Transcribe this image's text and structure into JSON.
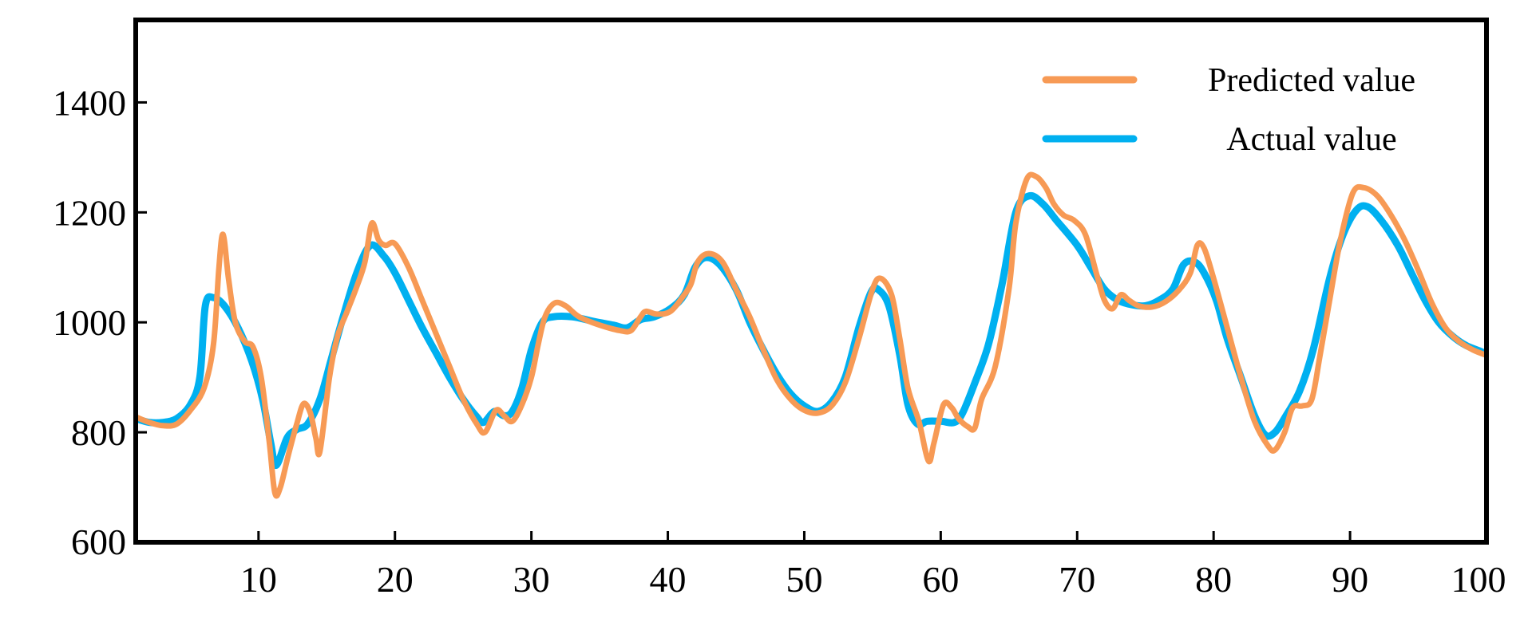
{
  "chart_data": {
    "type": "line",
    "title": "",
    "xlabel": "",
    "ylabel": "",
    "xlim": [
      1,
      100
    ],
    "ylim": [
      600,
      1550
    ],
    "x_ticks": [
      10,
      20,
      30,
      40,
      50,
      60,
      70,
      80,
      90,
      100
    ],
    "y_ticks": [
      600,
      800,
      1000,
      1200,
      1400
    ],
    "grid": false,
    "legend_position": "top-right",
    "series": [
      {
        "name": "Predicted value",
        "color": "#f79a55",
        "points": [
          [
            1,
            828
          ],
          [
            2,
            818
          ],
          [
            3,
            812
          ],
          [
            4,
            815
          ],
          [
            5,
            840
          ],
          [
            6,
            880
          ],
          [
            6.7,
            960
          ],
          [
            7.1,
            1100
          ],
          [
            7.4,
            1160
          ],
          [
            7.8,
            1080
          ],
          [
            8.3,
            1000
          ],
          [
            9,
            965
          ],
          [
            9.6,
            955
          ],
          [
            10.2,
            900
          ],
          [
            10.8,
            780
          ],
          [
            11.2,
            690
          ],
          [
            11.6,
            700
          ],
          [
            12.2,
            760
          ],
          [
            12.8,
            815
          ],
          [
            13.3,
            852
          ],
          [
            13.8,
            835
          ],
          [
            14.2,
            790
          ],
          [
            14.5,
            765
          ],
          [
            15.2,
            900
          ],
          [
            15.8,
            975
          ],
          [
            16.5,
            1020
          ],
          [
            17.2,
            1065
          ],
          [
            17.8,
            1110
          ],
          [
            18.3,
            1180
          ],
          [
            18.8,
            1150
          ],
          [
            19.3,
            1140
          ],
          [
            20,
            1143
          ],
          [
            21,
            1100
          ],
          [
            22,
            1040
          ],
          [
            23,
            980
          ],
          [
            24,
            920
          ],
          [
            25,
            860
          ],
          [
            26,
            815
          ],
          [
            26.6,
            800
          ],
          [
            27.4,
            840
          ],
          [
            28,
            830
          ],
          [
            28.6,
            820
          ],
          [
            29.3,
            850
          ],
          [
            30,
            900
          ],
          [
            30.5,
            960
          ],
          [
            31,
            1010
          ],
          [
            31.7,
            1035
          ],
          [
            32.5,
            1030
          ],
          [
            33.5,
            1010
          ],
          [
            35,
            995
          ],
          [
            36.5,
            985
          ],
          [
            37.3,
            985
          ],
          [
            38,
            1010
          ],
          [
            38.4,
            1020
          ],
          [
            39.2,
            1015
          ],
          [
            40.2,
            1020
          ],
          [
            41.2,
            1050
          ],
          [
            41.7,
            1070
          ],
          [
            42.2,
            1110
          ],
          [
            43,
            1125
          ],
          [
            44,
            1110
          ],
          [
            45,
            1060
          ],
          [
            46,
            1010
          ],
          [
            47,
            950
          ],
          [
            48,
            895
          ],
          [
            49,
            860
          ],
          [
            50,
            840
          ],
          [
            51,
            835
          ],
          [
            52,
            848
          ],
          [
            53,
            890
          ],
          [
            54,
            970
          ],
          [
            55,
            1060
          ],
          [
            55.6,
            1080
          ],
          [
            56.4,
            1050
          ],
          [
            57,
            970
          ],
          [
            57.6,
            880
          ],
          [
            58.4,
            820
          ],
          [
            59.1,
            748
          ],
          [
            59.5,
            780
          ],
          [
            60.2,
            850
          ],
          [
            60.8,
            845
          ],
          [
            61.3,
            825
          ],
          [
            62,
            810
          ],
          [
            62.5,
            808
          ],
          [
            63,
            860
          ],
          [
            64,
            920
          ],
          [
            65,
            1060
          ],
          [
            65.5,
            1180
          ],
          [
            66.3,
            1260
          ],
          [
            67,
            1265
          ],
          [
            67.7,
            1245
          ],
          [
            68.3,
            1215
          ],
          [
            69,
            1195
          ],
          [
            69.8,
            1185
          ],
          [
            70.6,
            1160
          ],
          [
            71.4,
            1090
          ],
          [
            72,
            1040
          ],
          [
            72.6,
            1025
          ],
          [
            73.2,
            1050
          ],
          [
            73.8,
            1040
          ],
          [
            74.5,
            1030
          ],
          [
            75.5,
            1028
          ],
          [
            76.5,
            1038
          ],
          [
            77.5,
            1060
          ],
          [
            78.3,
            1090
          ],
          [
            78.8,
            1140
          ],
          [
            79.3,
            1135
          ],
          [
            80,
            1080
          ],
          [
            81,
            990
          ],
          [
            82,
            900
          ],
          [
            83,
            820
          ],
          [
            84,
            775
          ],
          [
            84.5,
            768
          ],
          [
            85.2,
            800
          ],
          [
            85.8,
            845
          ],
          [
            86.5,
            848
          ],
          [
            87.2,
            860
          ],
          [
            87.8,
            940
          ],
          [
            88.5,
            1040
          ],
          [
            89.3,
            1150
          ],
          [
            90.2,
            1235
          ],
          [
            91,
            1245
          ],
          [
            92,
            1230
          ],
          [
            93,
            1195
          ],
          [
            94,
            1150
          ],
          [
            95,
            1095
          ],
          [
            96,
            1035
          ],
          [
            97,
            990
          ],
          [
            98,
            965
          ],
          [
            99,
            950
          ],
          [
            100,
            940
          ]
        ]
      },
      {
        "name": "Actual value",
        "color": "#00b0f0",
        "points": [
          [
            1,
            825
          ],
          [
            2,
            818
          ],
          [
            3,
            818
          ],
          [
            4,
            825
          ],
          [
            5,
            850
          ],
          [
            5.7,
            900
          ],
          [
            6.1,
            1030
          ],
          [
            6.7,
            1045
          ],
          [
            7.5,
            1030
          ],
          [
            8.5,
            990
          ],
          [
            9.5,
            930
          ],
          [
            10.3,
            860
          ],
          [
            10.9,
            780
          ],
          [
            11.3,
            740
          ],
          [
            12.1,
            790
          ],
          [
            12.8,
            805
          ],
          [
            13.6,
            815
          ],
          [
            14.5,
            860
          ],
          [
            15.3,
            930
          ],
          [
            16.2,
            1010
          ],
          [
            17.2,
            1090
          ],
          [
            18.2,
            1140
          ],
          [
            19.2,
            1120
          ],
          [
            20,
            1090
          ],
          [
            21,
            1040
          ],
          [
            22,
            990
          ],
          [
            23,
            945
          ],
          [
            24,
            900
          ],
          [
            25,
            860
          ],
          [
            26,
            828
          ],
          [
            26.5,
            818
          ],
          [
            27.3,
            838
          ],
          [
            28,
            830
          ],
          [
            28.6,
            838
          ],
          [
            29.3,
            880
          ],
          [
            30,
            950
          ],
          [
            30.8,
            1000
          ],
          [
            31.6,
            1010
          ],
          [
            33,
            1010
          ],
          [
            34.5,
            1002
          ],
          [
            36,
            995
          ],
          [
            37,
            990
          ],
          [
            38,
            1005
          ],
          [
            39,
            1010
          ],
          [
            40.2,
            1025
          ],
          [
            41.2,
            1050
          ],
          [
            42,
            1100
          ],
          [
            42.8,
            1118
          ],
          [
            43.8,
            1105
          ],
          [
            45,
            1060
          ],
          [
            46,
            1000
          ],
          [
            47,
            950
          ],
          [
            48,
            905
          ],
          [
            49,
            870
          ],
          [
            50,
            848
          ],
          [
            51,
            838
          ],
          [
            52,
            855
          ],
          [
            53,
            900
          ],
          [
            54,
            990
          ],
          [
            54.9,
            1055
          ],
          [
            55.4,
            1060
          ],
          [
            56.2,
            1030
          ],
          [
            57,
            940
          ],
          [
            57.6,
            850
          ],
          [
            58.3,
            815
          ],
          [
            59,
            820
          ],
          [
            60,
            820
          ],
          [
            61,
            818
          ],
          [
            61.6,
            835
          ],
          [
            62.5,
            890
          ],
          [
            63.5,
            960
          ],
          [
            64.5,
            1070
          ],
          [
            65.5,
            1200
          ],
          [
            66.5,
            1230
          ],
          [
            67.5,
            1215
          ],
          [
            68.5,
            1185
          ],
          [
            70,
            1140
          ],
          [
            71,
            1100
          ],
          [
            72,
            1060
          ],
          [
            73,
            1040
          ],
          [
            74,
            1032
          ],
          [
            75,
            1030
          ],
          [
            76,
            1040
          ],
          [
            77,
            1060
          ],
          [
            77.8,
            1105
          ],
          [
            78.6,
            1110
          ],
          [
            79.3,
            1090
          ],
          [
            80.2,
            1040
          ],
          [
            81,
            970
          ],
          [
            82,
            900
          ],
          [
            83,
            830
          ],
          [
            83.8,
            795
          ],
          [
            84.5,
            800
          ],
          [
            85.3,
            830
          ],
          [
            86.3,
            875
          ],
          [
            87.3,
            950
          ],
          [
            88.5,
            1080
          ],
          [
            89.5,
            1160
          ],
          [
            90.5,
            1205
          ],
          [
            91.3,
            1210
          ],
          [
            92.3,
            1185
          ],
          [
            93.5,
            1140
          ],
          [
            94.5,
            1090
          ],
          [
            95.5,
            1040
          ],
          [
            96.5,
            1000
          ],
          [
            97.5,
            975
          ],
          [
            98.5,
            958
          ],
          [
            99.5,
            948
          ],
          [
            100,
            942
          ]
        ]
      }
    ]
  }
}
